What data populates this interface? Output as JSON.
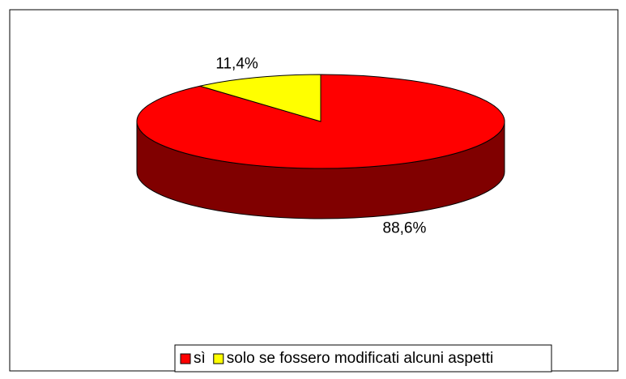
{
  "chart_data": {
    "type": "pie",
    "categories": [
      "sì",
      "solo se fossero modificati alcuni aspetti"
    ],
    "values": [
      88.6,
      11.4
    ],
    "value_labels": [
      "88,6%",
      "11,4%"
    ],
    "colors": [
      "#ff0000",
      "#ffff00"
    ],
    "legend": "bottom"
  }
}
